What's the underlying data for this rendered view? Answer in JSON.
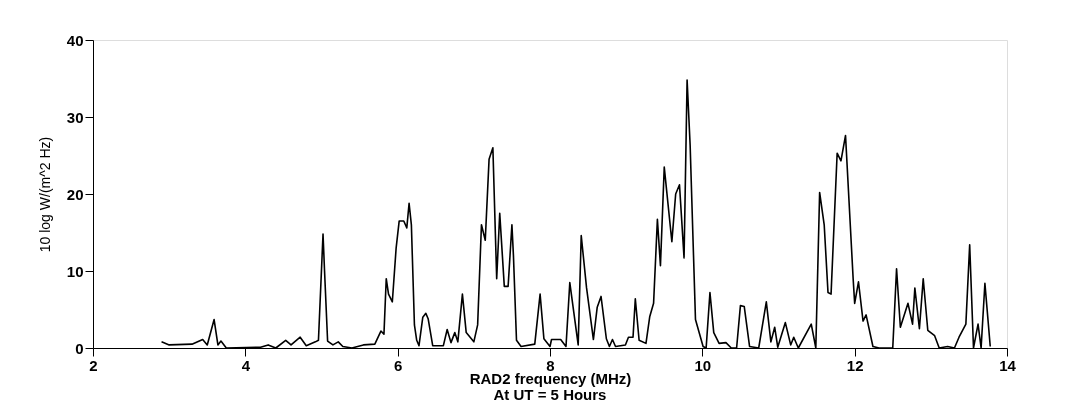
{
  "chart_data": {
    "type": "line",
    "xlabel": "RAD2 frequency (MHz)",
    "ylabel": "10 log W/(m^2 Hz)",
    "annotations": [
      "At UT =     5 Hours"
    ],
    "xlim": [
      2,
      14
    ],
    "xticks": [
      2,
      4,
      6,
      8,
      10,
      12,
      14
    ],
    "ylim": [
      0,
      40
    ],
    "yticks": [
      0,
      10,
      20,
      30,
      40
    ],
    "grid": false,
    "marker": "none",
    "line_style": "solid",
    "series": [
      {
        "color": "#000000",
        "x": [
          2.9,
          3.0,
          3.3,
          3.44,
          3.5,
          3.59,
          3.64,
          3.68,
          3.75,
          4.2,
          4.3,
          4.4,
          4.53,
          4.6,
          4.72,
          4.8,
          4.92,
          4.96,
          5.02,
          5.04,
          5.08,
          5.15,
          5.22,
          5.28,
          5.4,
          5.55,
          5.7,
          5.78,
          5.82,
          5.85,
          5.88,
          5.93,
          5.98,
          6.02,
          6.08,
          6.12,
          6.15,
          6.18,
          6.22,
          6.25,
          6.28,
          6.33,
          6.37,
          6.4,
          6.46,
          6.6,
          6.65,
          6.7,
          6.75,
          6.79,
          6.85,
          6.9,
          7.0,
          7.05,
          7.1,
          7.15,
          7.2,
          7.25,
          7.3,
          7.34,
          7.4,
          7.45,
          7.5,
          7.52,
          7.56,
          7.62,
          7.8,
          7.87,
          7.92,
          8.0,
          8.02,
          8.14,
          8.21,
          8.26,
          8.37,
          8.41,
          8.48,
          8.57,
          8.62,
          8.67,
          8.74,
          8.78,
          8.82,
          8.86,
          8.99,
          9.03,
          9.09,
          9.12,
          9.17,
          9.26,
          9.31,
          9.36,
          9.41,
          9.45,
          9.5,
          9.6,
          9.65,
          9.7,
          9.76,
          9.8,
          9.84,
          9.91,
          10.01,
          10.05,
          10.1,
          10.15,
          10.22,
          10.31,
          10.38,
          10.45,
          10.5,
          10.55,
          10.62,
          10.74,
          10.84,
          10.9,
          10.95,
          10.99,
          11.09,
          11.16,
          11.2,
          11.26,
          11.43,
          11.49,
          11.54,
          11.6,
          11.65,
          11.69,
          11.77,
          11.82,
          11.88,
          11.98,
          12.0,
          12.05,
          12.11,
          12.15,
          12.24,
          12.32,
          12.5,
          12.55,
          12.6,
          12.7,
          12.76,
          12.79,
          12.85,
          12.9,
          12.96,
          13.05,
          13.11,
          13.22,
          13.31,
          13.37,
          13.46,
          13.51,
          13.56,
          13.62,
          13.66,
          13.71,
          13.78
        ],
        "values": [
          0.8,
          0.4,
          0.5,
          1.1,
          0.4,
          3.7,
          0.4,
          0.9,
          0,
          0.1,
          0.4,
          0,
          1,
          0.4,
          1.4,
          0.3,
          0.8,
          1,
          14.8,
          10,
          0.9,
          0.4,
          0.8,
          0.2,
          0,
          0.4,
          0.5,
          2.2,
          1.8,
          9,
          7,
          6,
          13,
          16.5,
          16.5,
          15.6,
          18.8,
          16,
          3,
          1,
          0.3,
          4,
          4.5,
          3.8,
          0.3,
          0.3,
          2.4,
          0.7,
          2,
          0.8,
          7,
          2,
          0.8,
          3,
          16,
          14,
          24.5,
          26,
          9,
          17.5,
          8,
          8,
          16,
          12,
          1,
          0.2,
          0.5,
          7,
          1.2,
          0.2,
          1.1,
          1.1,
          0.2,
          8.5,
          0.4,
          14.6,
          7.8,
          1.1,
          5.3,
          6.7,
          1.2,
          0.2,
          1.1,
          0.2,
          0.4,
          1.4,
          1.4,
          6.4,
          1,
          0.6,
          4.1,
          5.8,
          16.7,
          10.7,
          23.5,
          13.8,
          20,
          21.2,
          11.7,
          34.8,
          26.3,
          3.7,
          0.2,
          0,
          7.2,
          2,
          0.6,
          0.7,
          0,
          0,
          5.5,
          5.4,
          0.2,
          0,
          6,
          0.8,
          2.7,
          0.1,
          3.3,
          0.4,
          1.4,
          0,
          3.1,
          0,
          20.2,
          16,
          7.2,
          7,
          25.3,
          24.3,
          27.6,
          9,
          5.8,
          8.6,
          3.5,
          4.3,
          0.2,
          0,
          0,
          10.3,
          2.7,
          5.8,
          3.1,
          7.8,
          2.5,
          9,
          2.3,
          1.6,
          0,
          0.2,
          0,
          1.4,
          3.1,
          13.4,
          0,
          3.1,
          0,
          8.4,
          0.2
        ]
      }
    ]
  }
}
